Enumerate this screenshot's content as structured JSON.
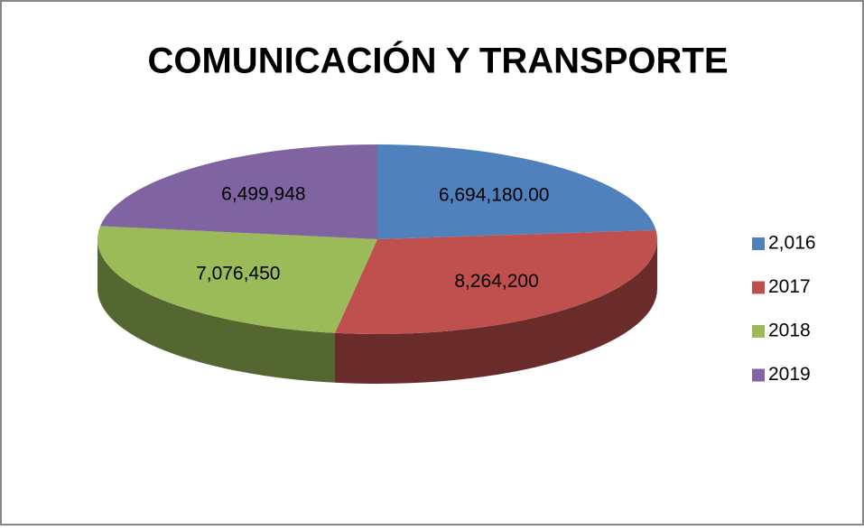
{
  "chart_data": {
    "type": "pie3d",
    "title": "COMUNICACIÓN Y TRANSPORTE",
    "categories": [
      " 2,016",
      "2017",
      "2018",
      "2019"
    ],
    "values": [
      6694180,
      8264200,
      7076450,
      6499948
    ],
    "value_labels": [
      "6,694,180.00",
      "8,264,200",
      "7,076,450",
      "6,499,948"
    ],
    "colors": [
      "#4f81bd",
      "#c0504d",
      "#9bbb59",
      "#8064a2"
    ],
    "legend": "right"
  }
}
